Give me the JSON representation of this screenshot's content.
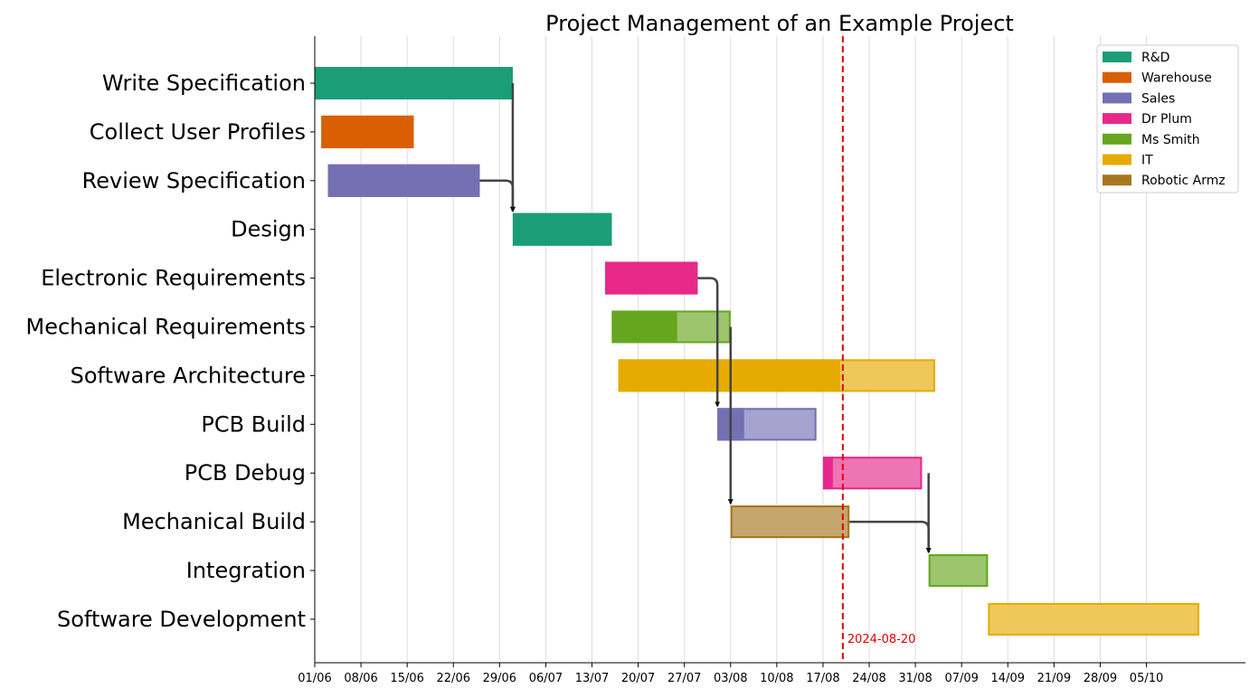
{
  "chart_data": {
    "type": "gantt",
    "title": "Project Management of an Example Project",
    "x_tick_labels": [
      "01/06",
      "08/06",
      "15/06",
      "22/06",
      "29/06",
      "06/07",
      "13/07",
      "20/07",
      "27/07",
      "03/08",
      "10/08",
      "17/08",
      "24/08",
      "31/08",
      "07/09",
      "14/09",
      "21/09",
      "28/09",
      "05/10"
    ],
    "x_start": "2024-06-01",
    "x_end": "2024-10-20",
    "grid": "vertical",
    "today": "2024-08-20",
    "today_label": "2024-08-20",
    "legend_position": "top-right",
    "departments": [
      {
        "name": "R&D",
        "color": "#1b9e77"
      },
      {
        "name": "Warehouse",
        "color": "#d95f02"
      },
      {
        "name": "Sales",
        "color": "#7570b3"
      },
      {
        "name": "Dr Plum",
        "color": "#e7298a"
      },
      {
        "name": "Ms Smith",
        "color": "#66a61e"
      },
      {
        "name": "IT",
        "color": "#e6ab02"
      },
      {
        "name": "Robotic Armz",
        "color": "#a6761d"
      }
    ],
    "tasks": [
      {
        "name": "Write Specification",
        "department": "R&D",
        "start": "2024-06-01",
        "end": "2024-07-01",
        "completion": 1.0
      },
      {
        "name": "Collect User Profiles",
        "department": "Warehouse",
        "start": "2024-06-02",
        "end": "2024-06-16",
        "completion": 1.0
      },
      {
        "name": "Review Specification",
        "department": "Sales",
        "start": "2024-06-03",
        "end": "2024-06-26",
        "completion": 1.0
      },
      {
        "name": "Design",
        "department": "R&D",
        "start": "2024-07-01",
        "end": "2024-07-16",
        "completion": 1.0
      },
      {
        "name": "Electronic Requirements",
        "department": "Dr Plum",
        "start": "2024-07-15",
        "end": "2024-07-29",
        "completion": 1.0
      },
      {
        "name": "Mechanical Requirements",
        "department": "Ms Smith",
        "start": "2024-07-16",
        "end": "2024-08-03",
        "completion": 0.55
      },
      {
        "name": "Software Architecture",
        "department": "IT",
        "start": "2024-07-17",
        "end": "2024-09-03",
        "completion": 0.7
      },
      {
        "name": "PCB Build",
        "department": "Sales",
        "start": "2024-08-01",
        "end": "2024-08-16",
        "completion": 0.27
      },
      {
        "name": "PCB Debug",
        "department": "Dr Plum",
        "start": "2024-08-17",
        "end": "2024-09-01",
        "completion": 0.1
      },
      {
        "name": "Mechanical Build",
        "department": "Robotic Armz",
        "start": "2024-08-03",
        "end": "2024-08-21",
        "completion": 0.0
      },
      {
        "name": "Integration",
        "department": "Ms Smith",
        "start": "2024-09-02",
        "end": "2024-09-11",
        "completion": 0.0
      },
      {
        "name": "Software Development",
        "department": "IT",
        "start": "2024-09-11",
        "end": "2024-10-13",
        "completion": 0.0
      }
    ],
    "dependencies": [
      {
        "from": "Write Specification",
        "to": "Design"
      },
      {
        "from": "Review Specification",
        "to": "Design"
      },
      {
        "from": "Electronic Requirements",
        "to": "PCB Build"
      },
      {
        "from": "Mechanical Requirements",
        "to": "Mechanical Build"
      },
      {
        "from": "PCB Debug",
        "to": "Integration"
      },
      {
        "from": "Mechanical Build",
        "to": "Integration"
      }
    ]
  }
}
